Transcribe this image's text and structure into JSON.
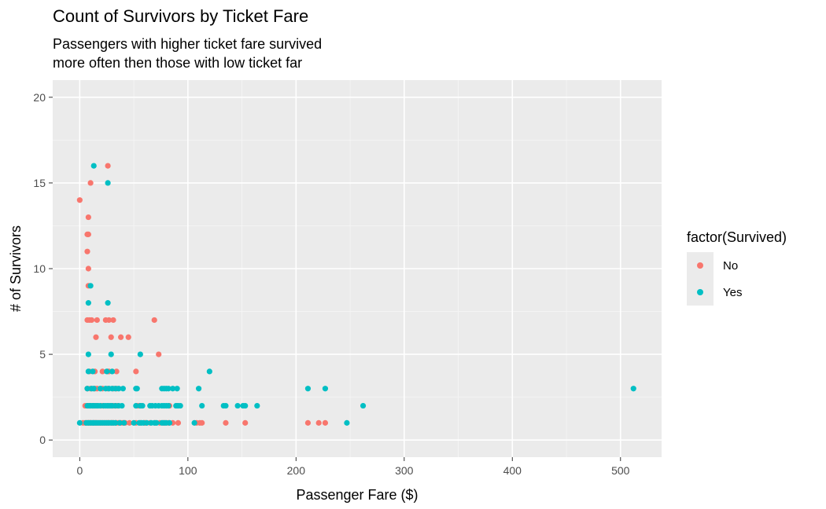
{
  "chart_data": {
    "type": "scatter",
    "title": "Count of Survivors by Ticket Fare",
    "subtitle_lines": [
      "Passengers with higher ticket fare survived",
      "more often then those with low ticket far"
    ],
    "xlabel": "Passenger Fare ($)",
    "ylabel": "# of Survivors",
    "xlim": [
      -25,
      538
    ],
    "ylim": [
      -1,
      21
    ],
    "xticks": [
      0,
      100,
      200,
      300,
      400,
      500
    ],
    "yticks": [
      0,
      5,
      10,
      15,
      20
    ],
    "grid": true,
    "legend_position": "right",
    "legend_title": "factor(Survived)",
    "series": [
      {
        "name": "No",
        "color": "#F8766D",
        "points": [
          [
            0,
            14
          ],
          [
            8,
            13
          ],
          [
            7,
            12
          ],
          [
            8,
            12
          ],
          [
            7,
            11
          ],
          [
            8,
            10
          ],
          [
            8,
            9
          ],
          [
            7,
            7
          ],
          [
            9,
            7
          ],
          [
            11,
            7
          ],
          [
            16,
            7
          ],
          [
            24,
            7
          ],
          [
            27,
            7
          ],
          [
            31,
            7
          ],
          [
            69,
            7
          ],
          [
            15,
            6
          ],
          [
            29,
            6
          ],
          [
            38,
            6
          ],
          [
            45,
            6
          ],
          [
            73,
            5
          ],
          [
            9,
            4
          ],
          [
            14,
            4
          ],
          [
            21,
            4
          ],
          [
            26,
            4
          ],
          [
            27,
            4
          ],
          [
            34,
            4
          ],
          [
            52,
            4
          ],
          [
            7,
            3
          ],
          [
            10,
            3
          ],
          [
            14,
            3
          ],
          [
            16,
            3
          ],
          [
            21,
            3
          ],
          [
            26,
            3
          ],
          [
            31,
            3
          ],
          [
            34,
            3
          ],
          [
            5,
            2
          ],
          [
            7,
            2
          ],
          [
            8,
            2
          ],
          [
            10,
            2
          ],
          [
            12,
            2
          ],
          [
            14,
            2
          ],
          [
            16,
            2
          ],
          [
            20,
            2
          ],
          [
            22,
            2
          ],
          [
            26,
            2
          ],
          [
            29,
            2
          ],
          [
            31,
            2
          ],
          [
            33,
            2
          ],
          [
            35,
            2
          ],
          [
            53,
            2
          ],
          [
            55,
            2
          ],
          [
            57,
            2
          ],
          [
            83,
            2
          ],
          [
            90,
            2
          ],
          [
            3,
            1
          ],
          [
            5,
            1
          ],
          [
            7,
            1
          ],
          [
            8,
            1
          ],
          [
            9,
            1
          ],
          [
            10,
            1
          ],
          [
            11,
            1
          ],
          [
            13,
            1
          ],
          [
            14,
            1
          ],
          [
            15,
            1
          ],
          [
            16,
            1
          ],
          [
            18,
            1
          ],
          [
            20,
            1
          ],
          [
            22,
            1
          ],
          [
            24,
            1
          ],
          [
            26,
            1
          ],
          [
            27,
            1
          ],
          [
            29,
            1
          ],
          [
            30,
            1
          ],
          [
            31,
            1
          ],
          [
            33,
            1
          ],
          [
            34,
            1
          ],
          [
            36,
            1
          ],
          [
            38,
            1
          ],
          [
            40,
            1
          ],
          [
            42,
            1
          ],
          [
            46,
            1
          ],
          [
            52,
            1
          ],
          [
            56,
            1
          ],
          [
            60,
            1
          ],
          [
            61,
            1
          ],
          [
            65,
            1
          ],
          [
            70,
            1
          ],
          [
            74,
            1
          ],
          [
            77,
            1
          ],
          [
            79,
            1
          ],
          [
            82,
            1
          ],
          [
            86,
            1
          ],
          [
            91,
            1
          ],
          [
            108,
            1
          ],
          [
            111,
            1
          ],
          [
            113,
            1
          ],
          [
            135,
            1
          ],
          [
            153,
            1
          ],
          [
            211,
            1
          ],
          [
            221,
            1
          ],
          [
            227,
            1
          ],
          [
            26,
            16
          ],
          [
            10,
            15
          ]
        ]
      },
      {
        "name": "Yes",
        "color": "#00BFC4",
        "points": [
          [
            13,
            16
          ],
          [
            26,
            15
          ],
          [
            10,
            9
          ],
          [
            8,
            8
          ],
          [
            26,
            8
          ],
          [
            8,
            5
          ],
          [
            29,
            5
          ],
          [
            56,
            5
          ],
          [
            120,
            4
          ],
          [
            8,
            4
          ],
          [
            12,
            4
          ],
          [
            25,
            4
          ],
          [
            30,
            4
          ],
          [
            7,
            3
          ],
          [
            11,
            3
          ],
          [
            13,
            3
          ],
          [
            19,
            3
          ],
          [
            24,
            3
          ],
          [
            27,
            3
          ],
          [
            30,
            3
          ],
          [
            33,
            3
          ],
          [
            36,
            3
          ],
          [
            40,
            3
          ],
          [
            52,
            3
          ],
          [
            53,
            3
          ],
          [
            76,
            3
          ],
          [
            78,
            3
          ],
          [
            80,
            3
          ],
          [
            82,
            3
          ],
          [
            86,
            3
          ],
          [
            90,
            3
          ],
          [
            110,
            3
          ],
          [
            211,
            3
          ],
          [
            227,
            3
          ],
          [
            512,
            3
          ],
          [
            7,
            2
          ],
          [
            9,
            2
          ],
          [
            10,
            2
          ],
          [
            12,
            2
          ],
          [
            13,
            2
          ],
          [
            15,
            2
          ],
          [
            17,
            2
          ],
          [
            19,
            2
          ],
          [
            22,
            2
          ],
          [
            24,
            2
          ],
          [
            26,
            2
          ],
          [
            28,
            2
          ],
          [
            30,
            2
          ],
          [
            33,
            2
          ],
          [
            36,
            2
          ],
          [
            39,
            2
          ],
          [
            52,
            2
          ],
          [
            56,
            2
          ],
          [
            58,
            2
          ],
          [
            65,
            2
          ],
          [
            67,
            2
          ],
          [
            70,
            2
          ],
          [
            73,
            2
          ],
          [
            76,
            2
          ],
          [
            78,
            2
          ],
          [
            80,
            2
          ],
          [
            82,
            2
          ],
          [
            89,
            2
          ],
          [
            91,
            2
          ],
          [
            93,
            2
          ],
          [
            113,
            2
          ],
          [
            133,
            2
          ],
          [
            135,
            2
          ],
          [
            146,
            2
          ],
          [
            151,
            2
          ],
          [
            153,
            2
          ],
          [
            164,
            2
          ],
          [
            262,
            2
          ],
          [
            0,
            1
          ],
          [
            6,
            1
          ],
          [
            8,
            1
          ],
          [
            10,
            1
          ],
          [
            12,
            1
          ],
          [
            13,
            1
          ],
          [
            15,
            1
          ],
          [
            17,
            1
          ],
          [
            19,
            1
          ],
          [
            21,
            1
          ],
          [
            23,
            1
          ],
          [
            25,
            1
          ],
          [
            27,
            1
          ],
          [
            29,
            1
          ],
          [
            31,
            1
          ],
          [
            33,
            1
          ],
          [
            37,
            1
          ],
          [
            41,
            1
          ],
          [
            50,
            1
          ],
          [
            55,
            1
          ],
          [
            57,
            1
          ],
          [
            59,
            1
          ],
          [
            62,
            1
          ],
          [
            66,
            1
          ],
          [
            69,
            1
          ],
          [
            71,
            1
          ],
          [
            76,
            1
          ],
          [
            78,
            1
          ],
          [
            80,
            1
          ],
          [
            83,
            1
          ],
          [
            106,
            1
          ],
          [
            247,
            1
          ]
        ]
      }
    ]
  }
}
